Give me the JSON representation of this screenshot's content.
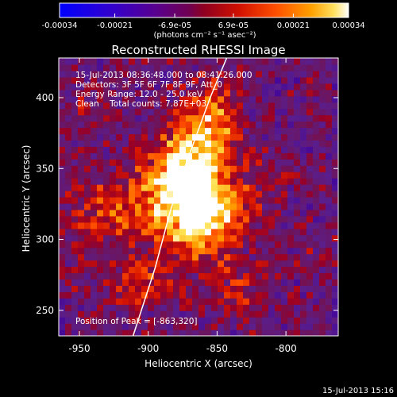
{
  "chart_data": {
    "type": "heatmap",
    "title": "Reconstructed RHESSI Image",
    "xlabel": "Heliocentric X (arcsec)",
    "ylabel": "Heliocentric Y (arcsec)",
    "xlim": [
      -965,
      -762
    ],
    "ylim": [
      232,
      428
    ],
    "x_ticks": [
      -950,
      -900,
      -850,
      -800
    ],
    "y_ticks": [
      250,
      300,
      350,
      400
    ],
    "colorbar": {
      "ticks": [
        "-0.00034",
        "-0.00021",
        "-6.9e-05",
        "6.9e-05",
        "0.00021",
        "0.00034"
      ],
      "tick_values": [
        -0.00034,
        -0.00021,
        -6.9e-05,
        6.9e-05,
        0.00021,
        0.00034
      ],
      "range": [
        -0.00034,
        0.00034
      ],
      "unit_label": "(photons cm⁻² s⁻¹ asec⁻²)",
      "colormap": "rainbow-to-hot"
    },
    "annotations": [
      "15-Jul-2013 08:36:48.000 to 08:41:26.000",
      "Detectors: 3F 5F 6F 7F 8F 9F, Att_0",
      "Energy Range: 12.0 - 25.0 keV",
      "Clean    Total counts: 7.87E+03"
    ],
    "peak_label": "Position of Peak = [-863,320]",
    "peak": [
      -863,
      320
    ],
    "sources": [
      {
        "x": -863,
        "y": 320,
        "sx": 18,
        "sy": 25,
        "amp": 1.0
      },
      {
        "x": -872,
        "y": 355,
        "sx": 15,
        "sy": 22,
        "amp": 0.75
      },
      {
        "x": -852,
        "y": 385,
        "sx": 13,
        "sy": 20,
        "amp": 0.62
      },
      {
        "x": -895,
        "y": 330,
        "sx": 20,
        "sy": 20,
        "amp": 0.55
      },
      {
        "x": -935,
        "y": 320,
        "sx": 18,
        "sy": 18,
        "amp": 0.42
      },
      {
        "x": -905,
        "y": 270,
        "sx": 15,
        "sy": 15,
        "amp": 0.4
      },
      {
        "x": -832,
        "y": 265,
        "sx": 14,
        "sy": 15,
        "amp": 0.3
      },
      {
        "x": -820,
        "y": 340,
        "sx": 14,
        "sy": 14,
        "amp": 0.24
      },
      {
        "x": -945,
        "y": 395,
        "sx": 10,
        "sy": 12,
        "amp": 0.18
      },
      {
        "x": -785,
        "y": 292,
        "sx": 12,
        "sy": 12,
        "amp": 0.16
      },
      {
        "x": -840,
        "y": 315,
        "sx": 12,
        "sy": 12,
        "amp": 0.3
      },
      {
        "x": -950,
        "y": 270,
        "sx": 12,
        "sy": 12,
        "amp": 0.15
      }
    ],
    "limb": [
      [
        -911,
        232
      ],
      [
        -895,
        280
      ],
      [
        -884,
        320
      ],
      [
        -872,
        355
      ],
      [
        -855,
        400
      ],
      [
        -843,
        428
      ]
    ]
  },
  "timestamp": "15-Jul-2013 15:16"
}
